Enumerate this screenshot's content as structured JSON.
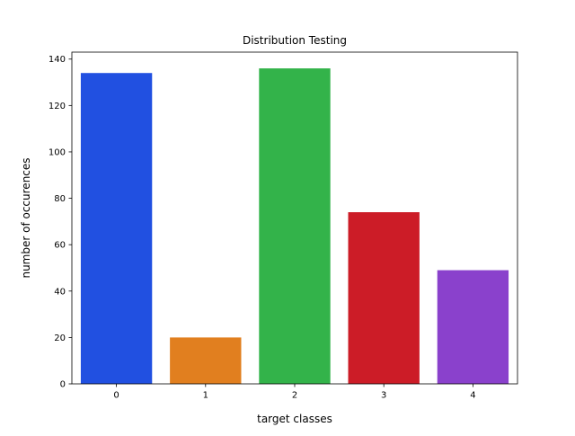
{
  "chart_data": {
    "type": "bar",
    "title": "Distribution Testing",
    "xlabel": "target classes",
    "ylabel": "number of occurences",
    "categories": [
      "0",
      "1",
      "2",
      "3",
      "4"
    ],
    "values": [
      134,
      20,
      136,
      74,
      49
    ],
    "colors": [
      "#2150e1",
      "#e17f1f",
      "#33b34a",
      "#cc1c27",
      "#8a41cc"
    ],
    "ylim": [
      0,
      143
    ],
    "yticks": [
      0,
      20,
      40,
      60,
      80,
      100,
      120,
      140
    ],
    "grid": false,
    "legend": "none"
  }
}
